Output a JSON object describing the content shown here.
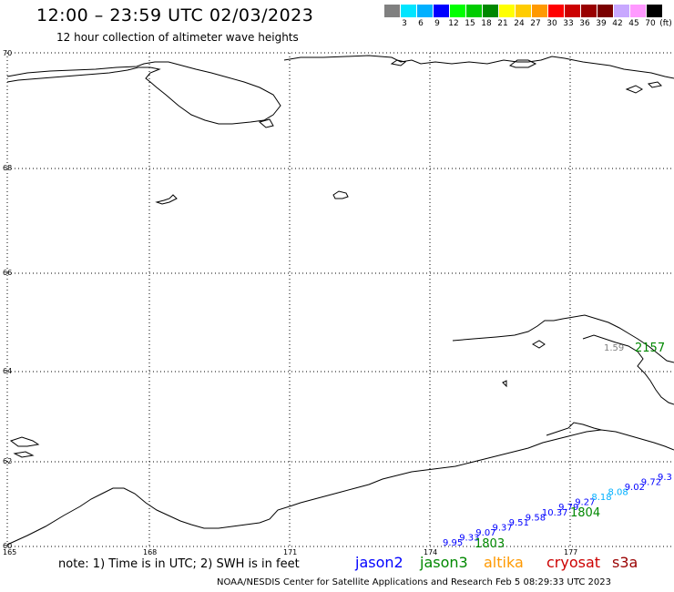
{
  "header": {
    "title": "12:00 – 23:59 UTC 02/03/2023",
    "subtitle": "12 hour collection of altimeter wave heights"
  },
  "color_scale": {
    "unit": "(ft)",
    "swatches": [
      {
        "color": "#808080",
        "label": ""
      },
      {
        "color": "#00e5ff",
        "label": "3"
      },
      {
        "color": "#00b0ff",
        "label": "6"
      },
      {
        "color": "#0000ff",
        "label": "9"
      },
      {
        "color": "#00ff00",
        "label": "12"
      },
      {
        "color": "#00cc00",
        "label": "15"
      },
      {
        "color": "#008800",
        "label": "18"
      },
      {
        "color": "#ffff00",
        "label": "21"
      },
      {
        "color": "#ffcc00",
        "label": "24"
      },
      {
        "color": "#ff9900",
        "label": "27"
      },
      {
        "color": "#ff0000",
        "label": "30"
      },
      {
        "color": "#cc0000",
        "label": "33"
      },
      {
        "color": "#990000",
        "label": "36"
      },
      {
        "color": "#7a0000",
        "label": "39"
      },
      {
        "color": "#c8a8ff",
        "label": "42"
      },
      {
        "color": "#ff99ff",
        "label": "45"
      },
      {
        "color": "#000000",
        "label": "70"
      }
    ]
  },
  "map": {
    "longitudes": [
      "165",
      "168",
      "171",
      "174",
      "177"
    ],
    "latitudes": [
      "70",
      "68",
      "66",
      "64",
      "62",
      "60"
    ],
    "tracks": [
      {
        "time": "1803",
        "time_color": "#008800",
        "points": [
          {
            "v": "9.95",
            "c": "#0000ff"
          },
          {
            "v": "9.33",
            "c": "#0000ff"
          },
          {
            "v": "9.07",
            "c": "#0000ff"
          },
          {
            "v": "9.37",
            "c": "#0000ff"
          },
          {
            "v": "9.51",
            "c": "#0000ff"
          },
          {
            "v": "9.58",
            "c": "#0000ff"
          },
          {
            "v": "10.37",
            "c": "#0000ff"
          },
          {
            "v": "9.79",
            "c": "#0000ff"
          },
          {
            "v": "9.27",
            "c": "#0000ff"
          },
          {
            "v": "8.18",
            "c": "#00b0ff"
          },
          {
            "v": "8.08",
            "c": "#00b0ff"
          },
          {
            "v": "9.02",
            "c": "#0000ff"
          },
          {
            "v": "9.72",
            "c": "#0000ff"
          },
          {
            "v": "9.3",
            "c": "#0000ff"
          }
        ]
      }
    ],
    "time_1804": "1804",
    "time_2157": "2157",
    "value_159": "1.59"
  },
  "legend": {
    "note": "note:  1) Time is in UTC;  2) SWH is in feet",
    "missions": [
      {
        "name": "jason2",
        "color": "#0000ff"
      },
      {
        "name": "jason3",
        "color": "#008800"
      },
      {
        "name": "altika",
        "color": "#ff9900"
      },
      {
        "name": "cryosat",
        "color": "#cc0000"
      },
      {
        "name": "s3a",
        "color": "#990000"
      }
    ]
  },
  "credit": "NOAA/NESDIS Center for Satellite Applications and Research    Feb  5 08:29:33 UTC 2023"
}
